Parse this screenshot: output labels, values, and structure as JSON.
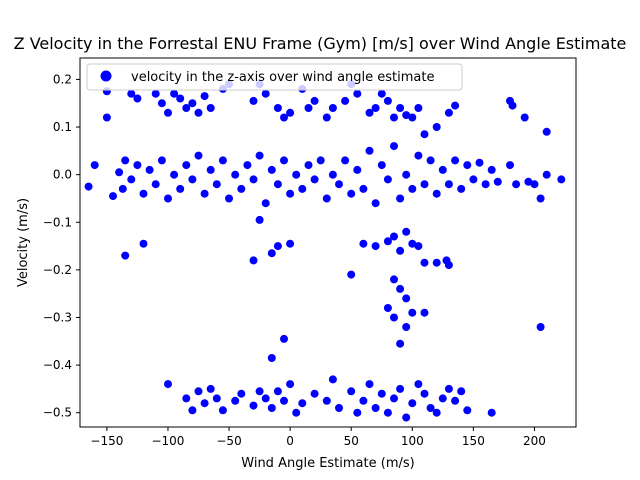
{
  "chart_data": {
    "type": "scatter",
    "title": "Z Velocity in the Forrestal ENU Frame (Gym) [m/s] over Wind Angle Estimate",
    "xlabel": "Wind Angle Estimate (m/s)",
    "ylabel": "Velocity (m/s)",
    "xlim": [
      -172,
      234
    ],
    "ylim": [
      -0.53,
      0.245
    ],
    "xticks": [
      -150,
      -100,
      -50,
      0,
      50,
      100,
      150,
      200
    ],
    "yticks": [
      -0.5,
      -0.4,
      -0.3,
      -0.2,
      -0.1,
      0.0,
      0.1,
      0.2
    ],
    "xtick_labels": [
      "−150",
      "−100",
      "−50",
      "0",
      "50",
      "100",
      "150",
      "200"
    ],
    "ytick_labels": [
      "−0.5",
      "−0.4",
      "−0.3",
      "−0.2",
      "−0.1",
      "0.0",
      "0.1",
      "0.2"
    ],
    "grid": false,
    "legend_position": "upper-left",
    "marker_color": "#0000ff",
    "series": [
      {
        "name": "velocity in the z-axis over wind angle estimate",
        "points": [
          [
            -150,
            0.175
          ],
          [
            -150,
            0.12
          ],
          [
            -130,
            0.17
          ],
          [
            -125,
            0.16
          ],
          [
            -110,
            0.17
          ],
          [
            -105,
            0.15
          ],
          [
            -100,
            0.13
          ],
          [
            -95,
            0.17
          ],
          [
            -90,
            0.16
          ],
          [
            -85,
            0.14
          ],
          [
            -80,
            0.15
          ],
          [
            -75,
            0.13
          ],
          [
            -70,
            0.165
          ],
          [
            -65,
            0.14
          ],
          [
            -55,
            0.18
          ],
          [
            -50,
            0.19
          ],
          [
            -30,
            0.155
          ],
          [
            -25,
            0.19
          ],
          [
            -20,
            0.17
          ],
          [
            -10,
            0.14
          ],
          [
            -5,
            0.12
          ],
          [
            0,
            0.13
          ],
          [
            10,
            0.18
          ],
          [
            15,
            0.14
          ],
          [
            20,
            0.155
          ],
          [
            30,
            0.12
          ],
          [
            35,
            0.14
          ],
          [
            45,
            0.155
          ],
          [
            50,
            0.19
          ],
          [
            55,
            0.17
          ],
          [
            65,
            0.13
          ],
          [
            70,
            0.14
          ],
          [
            75,
            0.17
          ],
          [
            80,
            0.155
          ],
          [
            85,
            0.12
          ],
          [
            90,
            0.14
          ],
          [
            95,
            0.125
          ],
          [
            100,
            0.12
          ],
          [
            105,
            0.14
          ],
          [
            110,
            0.085
          ],
          [
            120,
            0.1
          ],
          [
            130,
            0.13
          ],
          [
            135,
            0.145
          ],
          [
            180,
            0.155
          ],
          [
            182,
            0.145
          ],
          [
            192,
            0.12
          ],
          [
            210,
            0.09
          ],
          [
            -160,
            0.02
          ],
          [
            -165,
            -0.025
          ],
          [
            -145,
            -0.045
          ],
          [
            -140,
            0.005
          ],
          [
            -137,
            -0.03
          ],
          [
            -135,
            0.03
          ],
          [
            -130,
            -0.01
          ],
          [
            -125,
            0.02
          ],
          [
            -120,
            -0.04
          ],
          [
            -115,
            0.01
          ],
          [
            -110,
            -0.02
          ],
          [
            -105,
            0.03
          ],
          [
            -100,
            -0.05
          ],
          [
            -95,
            0.0
          ],
          [
            -90,
            -0.03
          ],
          [
            -85,
            0.02
          ],
          [
            -80,
            -0.01
          ],
          [
            -75,
            0.04
          ],
          [
            -70,
            -0.04
          ],
          [
            -65,
            0.01
          ],
          [
            -60,
            -0.02
          ],
          [
            -55,
            0.03
          ],
          [
            -50,
            -0.05
          ],
          [
            -45,
            0.0
          ],
          [
            -40,
            -0.03
          ],
          [
            -35,
            0.02
          ],
          [
            -30,
            -0.01
          ],
          [
            -25,
            0.04
          ],
          [
            -20,
            -0.06
          ],
          [
            -15,
            0.01
          ],
          [
            -10,
            -0.02
          ],
          [
            -5,
            0.03
          ],
          [
            0,
            -0.04
          ],
          [
            5,
            0.0
          ],
          [
            10,
            -0.03
          ],
          [
            15,
            0.02
          ],
          [
            20,
            -0.01
          ],
          [
            25,
            0.03
          ],
          [
            30,
            -0.05
          ],
          [
            35,
            0.0
          ],
          [
            40,
            -0.02
          ],
          [
            45,
            0.03
          ],
          [
            50,
            -0.04
          ],
          [
            55,
            0.01
          ],
          [
            60,
            -0.03
          ],
          [
            65,
            0.05
          ],
          [
            70,
            -0.06
          ],
          [
            75,
            0.02
          ],
          [
            80,
            -0.01
          ],
          [
            85,
            0.06
          ],
          [
            90,
            -0.05
          ],
          [
            95,
            0.0
          ],
          [
            100,
            -0.03
          ],
          [
            105,
            0.04
          ],
          [
            110,
            -0.02
          ],
          [
            115,
            0.03
          ],
          [
            120,
            -0.04
          ],
          [
            125,
            0.01
          ],
          [
            130,
            -0.02
          ],
          [
            135,
            0.03
          ],
          [
            140,
            -0.03
          ],
          [
            145,
            0.02
          ],
          [
            150,
            -0.01
          ],
          [
            155,
            0.025
          ],
          [
            160,
            -0.02
          ],
          [
            165,
            0.01
          ],
          [
            170,
            -0.015
          ],
          [
            180,
            0.02
          ],
          [
            185,
            -0.02
          ],
          [
            195,
            -0.015
          ],
          [
            200,
            -0.02
          ],
          [
            205,
            -0.05
          ],
          [
            210,
            0.0
          ],
          [
            222,
            -0.01
          ],
          [
            -135,
            -0.17
          ],
          [
            -120,
            -0.145
          ],
          [
            -30,
            -0.18
          ],
          [
            -25,
            -0.095
          ],
          [
            -15,
            -0.165
          ],
          [
            -10,
            -0.15
          ],
          [
            0,
            -0.145
          ],
          [
            50,
            -0.21
          ],
          [
            60,
            -0.145
          ],
          [
            70,
            -0.15
          ],
          [
            80,
            -0.14
          ],
          [
            85,
            -0.13
          ],
          [
            90,
            -0.16
          ],
          [
            95,
            -0.12
          ],
          [
            100,
            -0.145
          ],
          [
            105,
            -0.15
          ],
          [
            110,
            -0.185
          ],
          [
            120,
            -0.185
          ],
          [
            128,
            -0.18
          ],
          [
            130,
            -0.19
          ],
          [
            85,
            -0.22
          ],
          [
            90,
            -0.24
          ],
          [
            80,
            -0.28
          ],
          [
            95,
            -0.26
          ],
          [
            100,
            -0.29
          ],
          [
            110,
            -0.29
          ],
          [
            85,
            -0.3
          ],
          [
            95,
            -0.32
          ],
          [
            90,
            -0.355
          ],
          [
            205,
            -0.32
          ],
          [
            -5,
            -0.345
          ],
          [
            -15,
            -0.385
          ],
          [
            -100,
            -0.44
          ],
          [
            -85,
            -0.47
          ],
          [
            -80,
            -0.495
          ],
          [
            -75,
            -0.455
          ],
          [
            -70,
            -0.48
          ],
          [
            -65,
            -0.45
          ],
          [
            -60,
            -0.47
          ],
          [
            -55,
            -0.495
          ],
          [
            -45,
            -0.475
          ],
          [
            -40,
            -0.46
          ],
          [
            -30,
            -0.485
          ],
          [
            -25,
            -0.455
          ],
          [
            -20,
            -0.47
          ],
          [
            -15,
            -0.49
          ],
          [
            -10,
            -0.455
          ],
          [
            -5,
            -0.475
          ],
          [
            0,
            -0.44
          ],
          [
            5,
            -0.5
          ],
          [
            10,
            -0.48
          ],
          [
            20,
            -0.46
          ],
          [
            30,
            -0.475
          ],
          [
            35,
            -0.43
          ],
          [
            40,
            -0.49
          ],
          [
            50,
            -0.455
          ],
          [
            55,
            -0.5
          ],
          [
            60,
            -0.475
          ],
          [
            65,
            -0.44
          ],
          [
            70,
            -0.49
          ],
          [
            75,
            -0.46
          ],
          [
            80,
            -0.5
          ],
          [
            85,
            -0.47
          ],
          [
            90,
            -0.45
          ],
          [
            95,
            -0.51
          ],
          [
            100,
            -0.48
          ],
          [
            105,
            -0.44
          ],
          [
            110,
            -0.46
          ],
          [
            115,
            -0.49
          ],
          [
            120,
            -0.5
          ],
          [
            125,
            -0.47
          ],
          [
            130,
            -0.45
          ],
          [
            135,
            -0.475
          ],
          [
            140,
            -0.455
          ],
          [
            145,
            -0.495
          ],
          [
            165,
            -0.5
          ]
        ]
      }
    ]
  }
}
